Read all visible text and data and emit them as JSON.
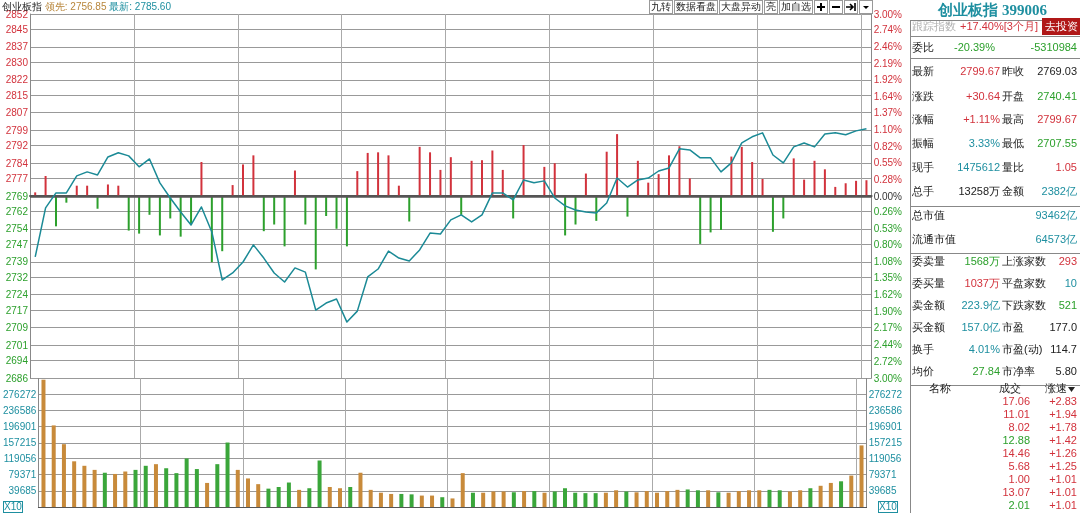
{
  "chart_data": [
    {
      "type": "line",
      "title": "创业板指",
      "annotations": [
        "领先: 2756.85",
        "最新: 2785.60",
        "九转",
        "数据看盘",
        "大盘异动",
        "亮",
        "加自选"
      ],
      "categories": [
        null,
        null,
        null,
        null,
        null,
        null,
        null,
        null,
        null,
        null,
        null,
        null,
        null,
        null,
        null,
        null,
        null,
        null,
        null,
        null,
        null,
        null,
        null,
        null,
        null,
        null,
        null,
        null,
        null,
        null,
        null,
        null,
        null,
        null,
        null,
        null,
        null,
        null,
        null,
        null,
        null,
        null,
        null,
        null,
        null,
        null,
        null,
        null,
        null,
        null,
        null,
        null,
        null,
        null,
        null,
        null,
        null,
        null,
        null,
        null,
        null,
        null,
        null,
        null,
        null,
        null,
        null,
        null,
        null,
        null,
        null,
        null,
        null,
        null,
        null,
        null,
        null,
        null,
        null,
        null,
        null
      ],
      "series": [
        {
          "type": "line",
          "color": "#1b8a96",
          "values": [
            2741.2,
            2763.6,
            2770.4,
            2770.4,
            2778.2,
            2780.0,
            2778.6,
            2786.8,
            2788.7,
            2787.3,
            2782.3,
            2785.9,
            2775.0,
            2768.1,
            2761.7,
            2755.8,
            2764.0,
            2752.6,
            2730.7,
            2733.9,
            2738.9,
            2746.7,
            2740.7,
            2733.9,
            2729.8,
            2736.2,
            2734.3,
            2717.0,
            2720.2,
            2722.0,
            2711.5,
            2716.5,
            2732.1,
            2735.7,
            2743.9,
            2740.7,
            2739.4,
            2744.4,
            2752.1,
            2751.7,
            2758.1,
            2760.4,
            2757.2,
            2760.4,
            2770.4,
            2770.4,
            2767.2,
            2776.3,
            2775.0,
            2775.9,
            2768.1,
            2764.5,
            2762.6,
            2761.7,
            2761.3,
            2765.8,
            2777.2,
            2773.1,
            2776.3,
            2777.2,
            2780.4,
            2781.8,
            2790.5,
            2790.0,
            2786.4,
            2786.4,
            2780.0,
            2784.1,
            2793.2,
            2796.0,
            2797.8,
            2787.7,
            2784.1,
            2791.4,
            2793.2,
            2791.4,
            2797.3,
            2797.8,
            2796.9,
            2798.7,
            2799.7
          ]
        },
        {
          "type": "bar",
          "axis": "y2",
          "color": "#d2323c",
          "values": [
            0.06,
            0.33,
            null,
            null,
            0.17,
            0.17,
            null,
            0.19,
            0.17,
            null,
            null,
            null,
            null,
            null,
            null,
            null,
            0.56,
            null,
            null,
            0.18,
            0.52,
            0.67,
            null,
            null,
            null,
            0.42,
            null,
            null,
            null,
            null,
            null,
            0.41,
            0.71,
            0.72,
            0.67,
            0.17,
            null,
            0.81,
            0.72,
            0.43,
            0.64,
            null,
            0.58,
            0.59,
            0.75,
            0.43,
            null,
            0.84,
            null,
            0.48,
            0.54,
            null,
            null,
            0.37,
            null,
            0.73,
            1.02,
            null,
            0.58,
            0.22,
            0.36,
            0.67,
            0.82,
            0.29,
            null,
            null,
            null,
            0.65,
            0.81,
            0.56,
            0.28,
            null,
            null,
            0.62,
            0.27,
            0.58,
            0.44,
            0.15,
            0.21,
            0.25,
            0.26
          ]
        },
        {
          "type": "bar",
          "axis": "y2",
          "color": "#2ca02c",
          "values": [
            null,
            null,
            -0.5,
            -0.11,
            null,
            null,
            -0.21,
            null,
            null,
            -0.57,
            -0.62,
            -0.31,
            -0.65,
            -0.37,
            -0.67,
            -0.48,
            null,
            -1.09,
            -0.91,
            null,
            null,
            null,
            -0.58,
            -0.47,
            -0.83,
            null,
            -0.47,
            -1.21,
            -0.33,
            -0.54,
            -0.83,
            null,
            null,
            null,
            null,
            null,
            -0.42,
            null,
            null,
            null,
            null,
            -0.31,
            null,
            null,
            null,
            null,
            -0.37,
            null,
            null,
            null,
            null,
            -0.65,
            -0.47,
            null,
            -0.41,
            null,
            null,
            -0.34,
            null,
            null,
            null,
            null,
            null,
            null,
            -0.79,
            -0.6,
            -0.56,
            null,
            null,
            null,
            null,
            -0.59,
            -0.37,
            null,
            null,
            null,
            null,
            null,
            null,
            null,
            null
          ]
        }
      ],
      "ylim": [
        2686,
        2852
      ],
      "yticks": [
        2686,
        2694,
        2701,
        2709,
        2717,
        2724,
        2732,
        2739,
        2747,
        2754,
        2762,
        2769,
        2777,
        2784,
        2792,
        2799,
        2807,
        2815,
        2822,
        2830,
        2837,
        2845,
        2852
      ],
      "y2lim": [
        -3,
        3
      ],
      "y2ticks": [
        {
          "value": -3,
          "label": "3.00%"
        },
        {
          "value": -2.72,
          "label": "2.72%"
        },
        {
          "value": -2.44,
          "label": "2.44%"
        },
        {
          "value": -2.17,
          "label": "2.17%"
        },
        {
          "value": -1.9,
          "label": "1.90%"
        },
        {
          "value": -1.62,
          "label": "1.62%"
        },
        {
          "value": -1.35,
          "label": "1.35%"
        },
        {
          "value": -1.08,
          "label": "1.08%"
        },
        {
          "value": -0.8,
          "label": "0.80%"
        },
        {
          "value": -0.53,
          "label": "0.53%"
        },
        {
          "value": -0.26,
          "label": "0.26%"
        },
        {
          "value": 0,
          "label": "0.00%"
        },
        {
          "value": 0.28,
          "label": "0.28%"
        },
        {
          "value": 0.55,
          "label": "0.55%"
        },
        {
          "value": 0.82,
          "label": "0.82%"
        },
        {
          "value": 1.1,
          "label": "1.10%"
        },
        {
          "value": 1.37,
          "label": "1.37%"
        },
        {
          "value": 1.64,
          "label": "1.64%"
        },
        {
          "value": 1.92,
          "label": "1.92%"
        },
        {
          "value": 2.19,
          "label": "2.19%"
        },
        {
          "value": 2.46,
          "label": "2.46%"
        },
        {
          "value": 2.74,
          "label": "2.74%"
        },
        {
          "value": 3,
          "label": "3.00%"
        }
      ],
      "ref_lines": [
        {
          "axis": "y",
          "value": 2769.03,
          "color": "#555555"
        }
      ],
      "grid": true,
      "tick_labels": "y",
      "marker": "none",
      "line_style": "solid"
    },
    {
      "type": "bar",
      "ylabel": "X10",
      "y2label": "X10",
      "categories": [
        null,
        null,
        null,
        null,
        null,
        null,
        null,
        null,
        null,
        null,
        null,
        null,
        null,
        null,
        null,
        null,
        null,
        null,
        null,
        null,
        null,
        null,
        null,
        null,
        null,
        null,
        null,
        null,
        null,
        null,
        null,
        null,
        null,
        null,
        null,
        null,
        null,
        null,
        null,
        null,
        null,
        null,
        null,
        null,
        null,
        null,
        null,
        null,
        null,
        null,
        null,
        null,
        null,
        null,
        null,
        null,
        null,
        null,
        null,
        null,
        null,
        null,
        null,
        null,
        null,
        null,
        null,
        null,
        null,
        null,
        null,
        null,
        null,
        null,
        null,
        null,
        null,
        null,
        null,
        null,
        null
      ],
      "series": [
        {
          "color": "#c88a3a",
          "values": [
            312000,
            200000,
            154000,
            112000,
            101000,
            91000,
            null,
            81000,
            87000,
            null,
            null,
            105000,
            null,
            null,
            null,
            null,
            59000,
            null,
            null,
            91000,
            70000,
            56000,
            null,
            null,
            null,
            42000,
            null,
            null,
            49000,
            46000,
            null,
            84000,
            42000,
            35000,
            32000,
            null,
            null,
            28000,
            28000,
            null,
            21000,
            83000,
            null,
            35000,
            38000,
            38000,
            null,
            39000,
            null,
            35000,
            null,
            null,
            null,
            null,
            null,
            35000,
            41000,
            null,
            36000,
            39000,
            35000,
            39000,
            42000,
            null,
            null,
            41000,
            null,
            35000,
            39000,
            41000,
            41000,
            null,
            null,
            38000,
            41000,
            null,
            52000,
            59000,
            null,
            77000,
            151000
          ]
        },
        {
          "color": "#3aa63a",
          "values": [
            null,
            null,
            null,
            null,
            null,
            null,
            84000,
            null,
            null,
            91000,
            101000,
            null,
            95000,
            83000,
            119000,
            93000,
            null,
            105000,
            158000,
            null,
            null,
            null,
            45000,
            49000,
            60000,
            null,
            46000,
            114000,
            null,
            null,
            49000,
            null,
            null,
            null,
            null,
            32000,
            31000,
            null,
            null,
            24000,
            null,
            null,
            35000,
            null,
            null,
            null,
            36000,
            null,
            39000,
            null,
            38000,
            46000,
            35000,
            34000,
            34000,
            null,
            null,
            38000,
            null,
            null,
            null,
            null,
            null,
            43000,
            41000,
            null,
            36000,
            null,
            null,
            null,
            null,
            42000,
            41000,
            null,
            null,
            46000,
            null,
            null,
            63000,
            null,
            null
          ]
        }
      ],
      "ylim": [
        0,
        316200
      ],
      "yticks": [
        39685,
        79371,
        119056,
        157215,
        196901,
        236586,
        276272
      ],
      "y2lim": [
        0,
        316200
      ],
      "y2ticks": [
        39685,
        79371,
        119056,
        157215,
        196901,
        236586,
        276272
      ],
      "grid": true,
      "tick_labels": "y"
    },
    {
      "type": "other",
      "title": "创业板指 399006",
      "annotations": [
        "跟踪指数",
        "+17.40%[3个月]",
        "去投资",
        "委比",
        "-20.39%",
        "-5310984",
        "最新",
        "2799.67",
        "昨收",
        "2769.03",
        "涨跌",
        "+30.64",
        "开盘",
        "2740.41",
        "涨幅",
        "+1.11%",
        "最高",
        "2799.67",
        "振幅",
        "3.33%",
        "最低",
        "2707.55",
        "现手",
        "1475612",
        "量比",
        "1.05",
        "总手",
        "13258万",
        "金额",
        "2382亿",
        "总市值",
        "93462亿",
        "流通市值",
        "64573亿",
        "委卖量",
        "1568万",
        "上涨家数",
        "293",
        "委买量",
        "1037万",
        "平盘家数",
        "10",
        "卖金额",
        "223.9亿",
        "下跌家数",
        "521",
        "买金额",
        "157.0亿",
        "市盈",
        "177.0",
        "换手",
        "4.01%",
        "市盈(动)",
        "114.7",
        "均价",
        "27.84",
        "市净率",
        "5.80",
        "名称",
        "成交",
        "涨速",
        "17.06",
        "+2.83",
        "11.01",
        "+1.94",
        "8.02",
        "+1.78",
        "12.88",
        "+1.42",
        "14.46",
        "+1.26",
        "5.68",
        "+1.25",
        "1.00",
        "+1.01",
        "13.07",
        "+1.01",
        "2.01",
        "+1.01"
      ]
    }
  ]
}
